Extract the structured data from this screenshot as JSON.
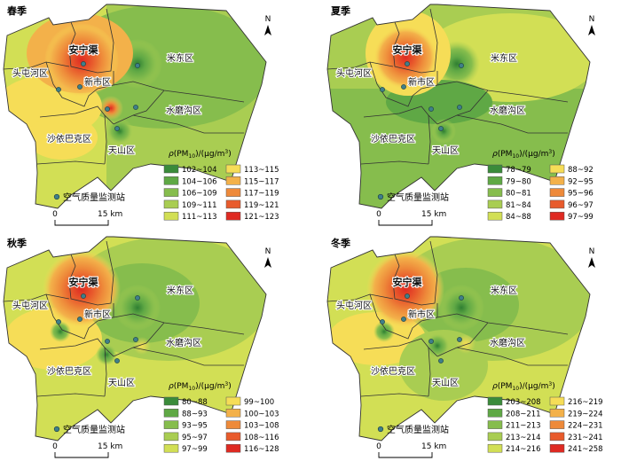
{
  "north_label": "N",
  "station_legend_label": "空气质量监测站",
  "scale": {
    "start": "0",
    "end": "15 km"
  },
  "panels": [
    {
      "season": "春季",
      "districts": [
        "米东区",
        "安宁渠",
        "头屯河区",
        "新市区",
        "水磨沟区",
        "沙依巴克区",
        "天山区"
      ],
      "legend_title": "ρ(PM10)/(μg/m3)",
      "legend_left": [
        {
          "label": "102~104",
          "color": "#3a8b3a"
        },
        {
          "label": "104~106",
          "color": "#5fa845"
        },
        {
          "label": "106~109",
          "color": "#86bd4d"
        },
        {
          "label": "109~111",
          "color": "#a9cd52"
        },
        {
          "label": "111~113",
          "color": "#d2df55"
        }
      ],
      "legend_right": [
        {
          "label": "113~115",
          "color": "#f6dd57"
        },
        {
          "label": "115~117",
          "color": "#f3b14a"
        },
        {
          "label": "117~119",
          "color": "#ee8a3a"
        },
        {
          "label": "119~121",
          "color": "#e85b2c"
        },
        {
          "label": "121~123",
          "color": "#df2a22"
        }
      ]
    },
    {
      "season": "夏季",
      "districts": [
        "米东区",
        "安宁渠",
        "头屯河区",
        "新市区",
        "水磨沟区",
        "沙依巴克区",
        "天山区"
      ],
      "legend_title": "ρ(PM10)/(μg/m3)",
      "legend_left": [
        {
          "label": "78~79",
          "color": "#3a8b3a"
        },
        {
          "label": "79~80",
          "color": "#5fa845"
        },
        {
          "label": "80~81",
          "color": "#86bd4d"
        },
        {
          "label": "81~84",
          "color": "#a9cd52"
        },
        {
          "label": "84~88",
          "color": "#d2df55"
        }
      ],
      "legend_right": [
        {
          "label": "88~92",
          "color": "#f6dd57"
        },
        {
          "label": "92~95",
          "color": "#f3b14a"
        },
        {
          "label": "95~96",
          "color": "#ee8a3a"
        },
        {
          "label": "96~97",
          "color": "#e85b2c"
        },
        {
          "label": "97~99",
          "color": "#df2a22"
        }
      ]
    },
    {
      "season": "秋季",
      "districts": [
        "米东区",
        "安宁渠",
        "头屯河区",
        "新市区",
        "水磨沟区",
        "沙依巴克区",
        "天山区"
      ],
      "legend_title": "ρ(PM10)/(μg/m3)",
      "legend_left": [
        {
          "label": "80~88",
          "color": "#3a8b3a"
        },
        {
          "label": "88~93",
          "color": "#5fa845"
        },
        {
          "label": "93~95",
          "color": "#86bd4d"
        },
        {
          "label": "95~97",
          "color": "#a9cd52"
        },
        {
          "label": "97~99",
          "color": "#d2df55"
        }
      ],
      "legend_right": [
        {
          "label": "99~100",
          "color": "#f6dd57"
        },
        {
          "label": "100~103",
          "color": "#f3b14a"
        },
        {
          "label": "103~108",
          "color": "#ee8a3a"
        },
        {
          "label": "108~116",
          "color": "#e85b2c"
        },
        {
          "label": "116~128",
          "color": "#df2a22"
        }
      ]
    },
    {
      "season": "冬季",
      "districts": [
        "米东区",
        "安宁渠",
        "头屯河区",
        "新市区",
        "水磨沟区",
        "沙依巴克区",
        "天山区"
      ],
      "legend_title": "ρ(PM10)/(μg/m3)",
      "legend_left": [
        {
          "label": "203~208",
          "color": "#3a8b3a"
        },
        {
          "label": "208~211",
          "color": "#5fa845"
        },
        {
          "label": "211~213",
          "color": "#86bd4d"
        },
        {
          "label": "213~214",
          "color": "#a9cd52"
        },
        {
          "label": "214~216",
          "color": "#d2df55"
        }
      ],
      "legend_right": [
        {
          "label": "216~219",
          "color": "#f6dd57"
        },
        {
          "label": "219~224",
          "color": "#f3b14a"
        },
        {
          "label": "224~231",
          "color": "#ee8a3a"
        },
        {
          "label": "231~241",
          "color": "#e85b2c"
        },
        {
          "label": "241~258",
          "color": "#df2a22"
        }
      ]
    }
  ]
}
